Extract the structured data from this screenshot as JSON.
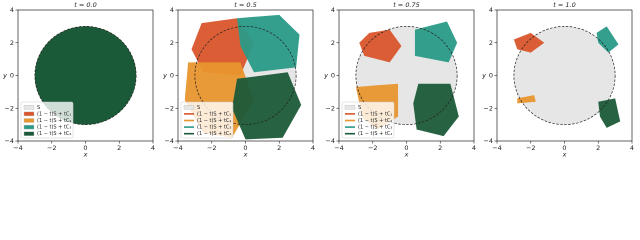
{
  "chart_data": [
    {
      "type": "area",
      "title": "t = 0.0",
      "xlabel": "x",
      "ylabel": "y",
      "xlim": [
        -4,
        4
      ],
      "ylim": [
        -4,
        4
      ],
      "xticks": [
        {
          "value": -4,
          "label": "−4"
        },
        {
          "value": -2,
          "label": "−2"
        },
        0,
        2,
        4
      ],
      "yticks": [
        {
          "value": -4,
          "label": "−4"
        },
        {
          "value": -2,
          "label": "−2"
        },
        0,
        2,
        4
      ],
      "reference_circle_radius": 3,
      "legend": "lower left",
      "series": [
        {
          "name": "S",
          "color": "#e6e6e6",
          "radius": 3
        },
        {
          "name": "(1 − t)S + tC₁",
          "color": "#d9552b",
          "radius": 3
        },
        {
          "name": "(1 − t)S + tC₂",
          "color": "#e8952e",
          "radius": 3
        },
        {
          "name": "(1 − t)S + tC₃",
          "color": "#2a9a88",
          "radius": 3
        },
        {
          "name": "(1 − t)S + tC₄",
          "color": "#1b5a38",
          "radius": 3
        }
      ]
    },
    {
      "type": "area",
      "title": "t = 0.5",
      "xlabel": "x",
      "ylabel": "y",
      "xlim": [
        -4,
        4
      ],
      "ylim": [
        -4,
        4
      ],
      "xticks": [
        {
          "value": -4,
          "label": "−4"
        },
        {
          "value": -2,
          "label": "−2"
        },
        0,
        2,
        4
      ],
      "yticks": [
        {
          "value": -4,
          "label": "−4"
        },
        {
          "value": -2,
          "label": "−2"
        },
        0,
        2,
        4
      ],
      "reference_circle_radius": 3,
      "legend": "lower left",
      "series": [
        {
          "name": "S",
          "color": "#e6e6e6",
          "radius": 3
        },
        {
          "name": "(1 − t)S + tC₁",
          "color": "#d9552b",
          "x": [
            -2.6,
            -0.5,
            0.5,
            -0.3,
            -2.5,
            -3.2
          ],
          "y": [
            3.2,
            3.5,
            2,
            0,
            0.2,
            1.6
          ]
        },
        {
          "name": "(1 − t)S + tC₂",
          "color": "#e8952e",
          "x": [
            -3.4,
            -0.3,
            0.5,
            -0.8,
            -2.5,
            -3.6
          ],
          "y": [
            0.8,
            0.8,
            -1.5,
            -3.8,
            -3.5,
            -1.5
          ]
        },
        {
          "name": "(1 − t)S + tC₃",
          "color": "#2a9a88",
          "x": [
            -0.5,
            2,
            3.2,
            3,
            0.5,
            -0.3
          ],
          "y": [
            3.5,
            3.7,
            2.5,
            0.5,
            0.2,
            1.8
          ]
        },
        {
          "name": "(1 − t)S + tC₄",
          "color": "#1b5a38",
          "x": [
            -0.5,
            2.5,
            3.3,
            2.2,
            0,
            -0.8
          ],
          "y": [
            -0.2,
            0.2,
            -1.8,
            -3.8,
            -3.9,
            -2
          ]
        }
      ]
    },
    {
      "type": "area",
      "title": "t = 0.75",
      "xlabel": "x",
      "ylabel": "y",
      "xlim": [
        -4,
        4
      ],
      "ylim": [
        -4,
        4
      ],
      "xticks": [
        {
          "value": -4,
          "label": "−4"
        },
        {
          "value": -2,
          "label": "−2"
        },
        0,
        2,
        4
      ],
      "yticks": [
        {
          "value": -4,
          "label": "−4"
        },
        {
          "value": -2,
          "label": "−2"
        },
        0,
        2,
        4
      ],
      "reference_circle_radius": 3,
      "legend": "lower left",
      "series": [
        {
          "name": "S",
          "color": "#e6e6e6",
          "radius": 3
        },
        {
          "name": "(1 − t)S + tC₁",
          "color": "#d9552b",
          "x": [
            -2.2,
            -1,
            -0.3,
            -1,
            -2.5,
            -2.8
          ],
          "y": [
            2.6,
            2.8,
            1.8,
            0.8,
            1.2,
            2
          ]
        },
        {
          "name": "(1 − t)S + tC₂",
          "color": "#e8952e",
          "x": [
            -3,
            -0.5,
            -0.5,
            -1.7,
            -2.6
          ],
          "y": [
            -0.7,
            -0.5,
            -2.5,
            -3.3,
            -2.6
          ]
        },
        {
          "name": "(1 − t)S + tC₃",
          "color": "#2a9a88",
          "x": [
            0.5,
            2.4,
            3,
            2.5,
            0.5
          ],
          "y": [
            2.8,
            3.3,
            2,
            0.8,
            1.2
          ]
        },
        {
          "name": "(1 − t)S + tC₄",
          "color": "#1b5a38",
          "x": [
            0.7,
            2.6,
            3.1,
            2.2,
            0.6,
            0.4
          ],
          "y": [
            -0.5,
            -0.5,
            -2.5,
            -3.7,
            -3.3,
            -1.7
          ]
        }
      ]
    },
    {
      "type": "area",
      "title": "t = 1.0",
      "xlabel": "x",
      "ylabel": "y",
      "xlim": [
        -4,
        4
      ],
      "ylim": [
        -4,
        4
      ],
      "xticks": [
        {
          "value": -4,
          "label": "−4"
        },
        {
          "value": -2,
          "label": "−2"
        },
        0,
        2,
        4
      ],
      "yticks": [
        {
          "value": -4,
          "label": "−4"
        },
        {
          "value": -2,
          "label": "−2"
        },
        0,
        2,
        4
      ],
      "reference_circle_radius": 3,
      "series": [
        {
          "color": "#e6e6e6",
          "radius": 3
        },
        {
          "color": "#d9552b",
          "x": [
            -3,
            -2,
            -1.2,
            -2,
            -2.8
          ],
          "y": [
            2.2,
            2.6,
            2,
            1.4,
            1.6
          ]
        },
        {
          "color": "#e8952e",
          "x": [
            -2.8,
            -1.8,
            -1.7,
            -2.8
          ],
          "y": [
            -1.4,
            -1.2,
            -1.6,
            -1.7
          ]
        },
        {
          "color": "#2a9a88",
          "x": [
            1.9,
            2.5,
            3.2,
            2.6,
            2
          ],
          "y": [
            2.6,
            3,
            1.9,
            1.4,
            2
          ]
        },
        {
          "color": "#1b5a38",
          "x": [
            2,
            3,
            3.3,
            2.5,
            2.1
          ],
          "y": [
            -1.6,
            -1.4,
            -2.8,
            -3.2,
            -2.5
          ]
        }
      ]
    }
  ]
}
